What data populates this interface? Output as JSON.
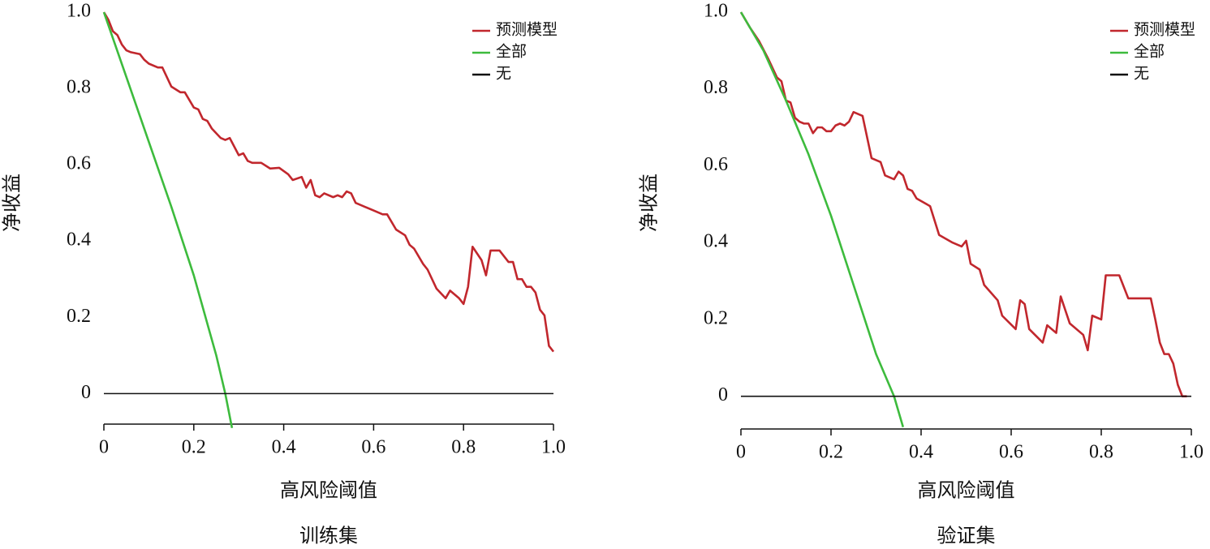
{
  "chart_data": [
    {
      "type": "line",
      "title": "训练集",
      "xlabel": "高风险阈值",
      "ylabel": "净收益",
      "xlim": [
        0,
        1
      ],
      "ylim": [
        -0.08,
        1.0
      ],
      "xticks": [
        0,
        0.2,
        0.4,
        0.6,
        0.8,
        {
          "value": 1,
          "label": "1.0"
        }
      ],
      "yticks": [
        0,
        0.2,
        0.4,
        0.6,
        0.8,
        {
          "value": 1,
          "label": "1.0"
        }
      ],
      "legend": "upper right",
      "series": [
        {
          "name": "预测模型",
          "color": "#c1272d",
          "x": [
            0,
            0.01,
            0.02,
            0.03,
            0.04,
            0.05,
            0.06,
            0.08,
            0.09,
            0.1,
            0.12,
            0.13,
            0.15,
            0.17,
            0.18,
            0.2,
            0.21,
            0.22,
            0.23,
            0.24,
            0.26,
            0.27,
            0.28,
            0.3,
            0.31,
            0.32,
            0.33,
            0.35,
            0.37,
            0.39,
            0.41,
            0.42,
            0.44,
            0.45,
            0.46,
            0.47,
            0.48,
            0.49,
            0.51,
            0.52,
            0.53,
            0.54,
            0.55,
            0.56,
            0.58,
            0.6,
            0.62,
            0.63,
            0.65,
            0.67,
            0.68,
            0.69,
            0.71,
            0.72,
            0.74,
            0.76,
            0.77,
            0.79,
            0.8,
            0.81,
            0.82,
            0.84,
            0.85,
            0.86,
            0.88,
            0.9,
            0.91,
            0.92,
            0.93,
            0.94,
            0.95,
            0.96,
            0.97,
            0.98,
            0.99,
            1.0
          ],
          "values": [
            1.0,
            0.98,
            0.95,
            0.94,
            0.915,
            0.9,
            0.895,
            0.89,
            0.875,
            0.865,
            0.855,
            0.855,
            0.805,
            0.79,
            0.79,
            0.75,
            0.745,
            0.72,
            0.715,
            0.695,
            0.67,
            0.665,
            0.67,
            0.625,
            0.63,
            0.61,
            0.605,
            0.605,
            0.59,
            0.592,
            0.575,
            0.56,
            0.568,
            0.54,
            0.56,
            0.52,
            0.515,
            0.525,
            0.515,
            0.52,
            0.515,
            0.53,
            0.525,
            0.5,
            0.49,
            0.48,
            0.47,
            0.47,
            0.43,
            0.415,
            0.39,
            0.38,
            0.34,
            0.325,
            0.275,
            0.25,
            0.27,
            0.25,
            0.235,
            0.28,
            0.385,
            0.35,
            0.31,
            0.375,
            0.375,
            0.345,
            0.345,
            0.3,
            0.3,
            0.28,
            0.28,
            0.265,
            0.22,
            0.205,
            0.125,
            0.11
          ]
        },
        {
          "name": "全部",
          "color": "#3dbb3d",
          "x": [
            0,
            0.05,
            0.1,
            0.15,
            0.2,
            0.25,
            0.27,
            0.285
          ],
          "values": [
            1.0,
            0.83,
            0.66,
            0.49,
            0.31,
            0.1,
            0.0,
            -0.09
          ]
        },
        {
          "name": "无",
          "color": "#111111",
          "x": [
            0,
            1
          ],
          "values": [
            0,
            0
          ]
        }
      ]
    },
    {
      "type": "line",
      "title": "验证集",
      "xlabel": "高风险阈值",
      "ylabel": "净收益",
      "xlim": [
        0,
        1
      ],
      "ylim": [
        -0.085,
        1.0
      ],
      "xticks": [
        0,
        0.2,
        0.4,
        0.6,
        0.8,
        {
          "value": 1,
          "label": "1.0"
        }
      ],
      "yticks": [
        0,
        0.2,
        0.4,
        0.6,
        0.8,
        {
          "value": 1,
          "label": "1.0"
        }
      ],
      "legend": "upper right",
      "series": [
        {
          "name": "预测模型",
          "color": "#c1272d",
          "x": [
            0,
            0.02,
            0.04,
            0.06,
            0.08,
            0.09,
            0.1,
            0.11,
            0.12,
            0.13,
            0.14,
            0.15,
            0.16,
            0.17,
            0.18,
            0.19,
            0.2,
            0.21,
            0.22,
            0.23,
            0.24,
            0.25,
            0.27,
            0.29,
            0.31,
            0.32,
            0.34,
            0.35,
            0.36,
            0.37,
            0.38,
            0.39,
            0.42,
            0.44,
            0.47,
            0.49,
            0.5,
            0.51,
            0.53,
            0.54,
            0.57,
            0.58,
            0.61,
            0.62,
            0.63,
            0.64,
            0.67,
            0.68,
            0.7,
            0.71,
            0.73,
            0.76,
            0.77,
            0.78,
            0.8,
            0.81,
            0.84,
            0.86,
            0.91,
            0.92,
            0.93,
            0.94,
            0.95,
            0.96,
            0.97,
            0.98,
            0.99
          ],
          "values": [
            1.0,
            0.96,
            0.925,
            0.88,
            0.83,
            0.82,
            0.77,
            0.765,
            0.725,
            0.715,
            0.71,
            0.71,
            0.685,
            0.7,
            0.7,
            0.69,
            0.69,
            0.705,
            0.71,
            0.705,
            0.715,
            0.74,
            0.73,
            0.62,
            0.61,
            0.575,
            0.565,
            0.585,
            0.575,
            0.54,
            0.535,
            0.515,
            0.495,
            0.42,
            0.4,
            0.39,
            0.405,
            0.345,
            0.33,
            0.29,
            0.25,
            0.21,
            0.175,
            0.25,
            0.24,
            0.175,
            0.14,
            0.185,
            0.165,
            0.26,
            0.19,
            0.16,
            0.12,
            0.21,
            0.2,
            0.315,
            0.315,
            0.255,
            0.255,
            0.2,
            0.14,
            0.11,
            0.11,
            0.085,
            0.03,
            0.0,
            0.0
          ]
        },
        {
          "name": "全部",
          "color": "#3dbb3d",
          "x": [
            0,
            0.05,
            0.1,
            0.15,
            0.2,
            0.25,
            0.3,
            0.34,
            0.36
          ],
          "values": [
            1.0,
            0.9,
            0.77,
            0.63,
            0.47,
            0.29,
            0.11,
            0.0,
            -0.08
          ]
        },
        {
          "name": "无",
          "color": "#111111",
          "x": [
            0,
            1
          ],
          "values": [
            0,
            0
          ]
        }
      ]
    }
  ]
}
